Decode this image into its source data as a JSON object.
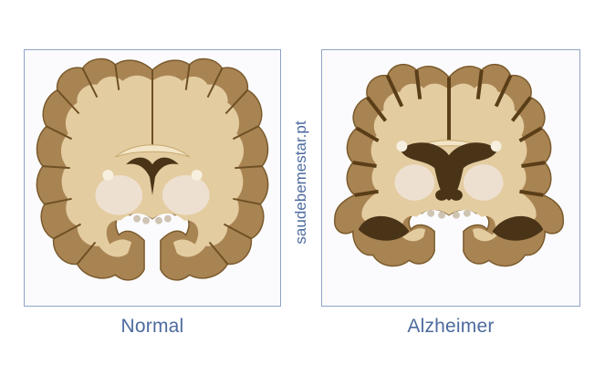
{
  "captions": {
    "normal": "Normal",
    "alzheimer": "Alzheimer"
  },
  "watermark": "saudebemestar.pt",
  "colors": {
    "frame": "#8fa3c8",
    "caption_text": "#4d6b9e",
    "white_matter": "#e3cca0",
    "gray_matter": "#a98453",
    "gray_matter_dark": "#6e5024",
    "ventricle": "#4a3418",
    "basal_ganglia": "#eee0d0"
  }
}
